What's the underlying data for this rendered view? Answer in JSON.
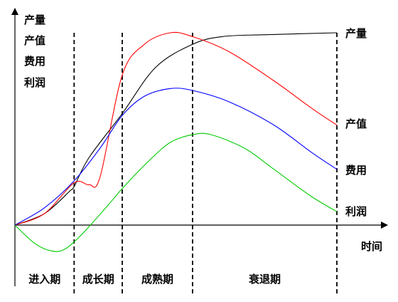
{
  "chart_data": {
    "type": "line",
    "ylabel_lines": [
      "产量",
      "产值",
      "费用",
      "利润"
    ],
    "xlabel": "时间",
    "x_range": [
      0,
      100
    ],
    "y_range": [
      -20,
      100
    ],
    "grid": false,
    "stage_boundaries": [
      16,
      29,
      48,
      87
    ],
    "stages": [
      "进入期",
      "成长期",
      "成熟期",
      "衰退期"
    ],
    "series": [
      {
        "name": "产量",
        "color": "#000000",
        "points": [
          [
            0,
            0
          ],
          [
            8,
            6
          ],
          [
            15,
            18
          ],
          [
            16,
            20
          ],
          [
            20,
            35
          ],
          [
            29,
            58
          ],
          [
            38,
            82
          ],
          [
            48,
            94
          ],
          [
            56,
            98
          ],
          [
            68,
            99
          ],
          [
            87,
            100
          ]
        ]
      },
      {
        "name": "产值",
        "color": "#ff0000",
        "points": [
          [
            0,
            0
          ],
          [
            8,
            6
          ],
          [
            16,
            22
          ],
          [
            20,
            21
          ],
          [
            23,
            25
          ],
          [
            29,
            78
          ],
          [
            35,
            94
          ],
          [
            42,
            100
          ],
          [
            48,
            98
          ],
          [
            58,
            90
          ],
          [
            70,
            75
          ],
          [
            80,
            61
          ],
          [
            87,
            52
          ]
        ]
      },
      {
        "name": "费用",
        "color": "#0000ff",
        "points": [
          [
            0,
            0
          ],
          [
            8,
            9
          ],
          [
            16,
            23
          ],
          [
            23,
            40
          ],
          [
            29,
            57
          ],
          [
            35,
            67
          ],
          [
            42,
            71
          ],
          [
            48,
            70
          ],
          [
            58,
            64
          ],
          [
            70,
            52
          ],
          [
            80,
            38
          ],
          [
            87,
            29
          ]
        ]
      },
      {
        "name": "利润",
        "color": "#00cc00",
        "points": [
          [
            0,
            0
          ],
          [
            5,
            -9
          ],
          [
            9,
            -13
          ],
          [
            13,
            -13
          ],
          [
            18,
            -5
          ],
          [
            25,
            10
          ],
          [
            29,
            19
          ],
          [
            36,
            33
          ],
          [
            42,
            43
          ],
          [
            48,
            47
          ],
          [
            53,
            47
          ],
          [
            62,
            40
          ],
          [
            70,
            29
          ],
          [
            80,
            15
          ],
          [
            87,
            7
          ]
        ]
      }
    ]
  }
}
